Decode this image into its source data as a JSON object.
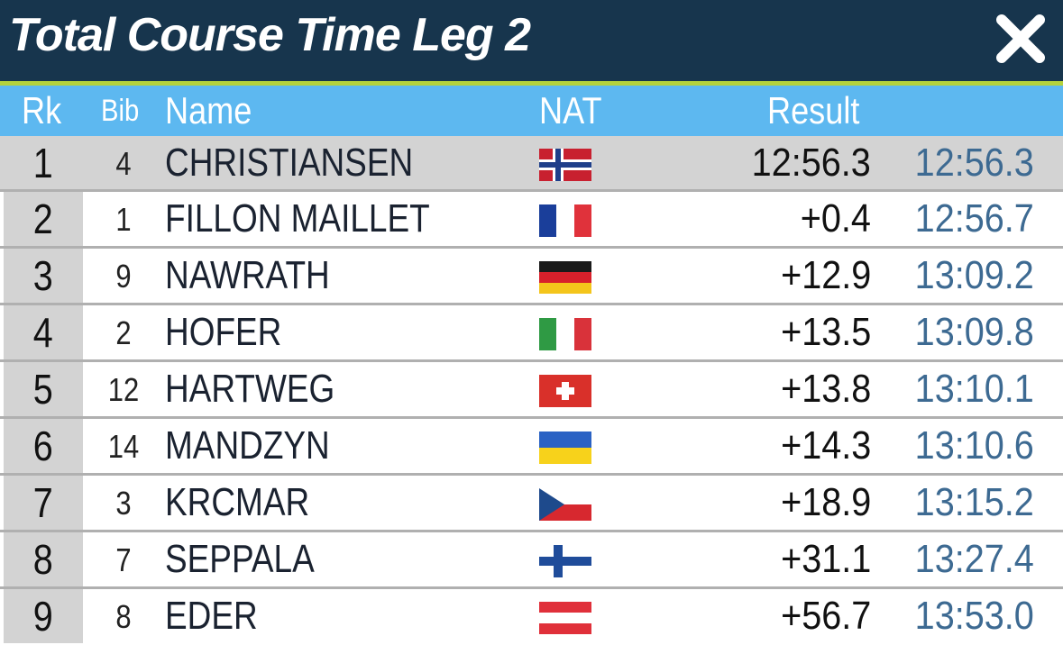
{
  "header": {
    "title": "Total Course Time Leg 2",
    "close_icon": "close-icon"
  },
  "columns": {
    "rk": "Rk",
    "bib": "Bib",
    "name": "Name",
    "nat": "NAT",
    "result": "Result"
  },
  "rows": [
    {
      "rk": "1",
      "bib": "4",
      "name": "CHRISTIANSEN",
      "nat": "NOR",
      "flag_icon": "norway-flag-icon",
      "result": "12:56.3",
      "total": "12:56.3"
    },
    {
      "rk": "2",
      "bib": "1",
      "name": "FILLON MAILLET",
      "nat": "FRA",
      "flag_icon": "france-flag-icon",
      "result": "+0.4",
      "total": "12:56.7"
    },
    {
      "rk": "3",
      "bib": "9",
      "name": "NAWRATH",
      "nat": "GER",
      "flag_icon": "germany-flag-icon",
      "result": "+12.9",
      "total": "13:09.2"
    },
    {
      "rk": "4",
      "bib": "2",
      "name": "HOFER",
      "nat": "ITA",
      "flag_icon": "italy-flag-icon",
      "result": "+13.5",
      "total": "13:09.8"
    },
    {
      "rk": "5",
      "bib": "12",
      "name": "HARTWEG",
      "nat": "SUI",
      "flag_icon": "switzerland-flag-icon",
      "result": "+13.8",
      "total": "13:10.1"
    },
    {
      "rk": "6",
      "bib": "14",
      "name": "MANDZYN",
      "nat": "UKR",
      "flag_icon": "ukraine-flag-icon",
      "result": "+14.3",
      "total": "13:10.6"
    },
    {
      "rk": "7",
      "bib": "3",
      "name": "KRCMAR",
      "nat": "CZE",
      "flag_icon": "czech-flag-icon",
      "result": "+18.9",
      "total": "13:15.2"
    },
    {
      "rk": "8",
      "bib": "7",
      "name": "SEPPALA",
      "nat": "FIN",
      "flag_icon": "finland-flag-icon",
      "result": "+31.1",
      "total": "13:27.4"
    },
    {
      "rk": "9",
      "bib": "8",
      "name": "EDER",
      "nat": "AUT",
      "flag_icon": "austria-flag-icon",
      "result": "+56.7",
      "total": "13:53.0"
    }
  ],
  "colors": {
    "header_bg": "#17354d",
    "accent": "#b4d23c",
    "column_header_bg": "#5db8f0",
    "rank_cell_bg": "#d3d3d3",
    "total_text": "#3d6a92"
  }
}
